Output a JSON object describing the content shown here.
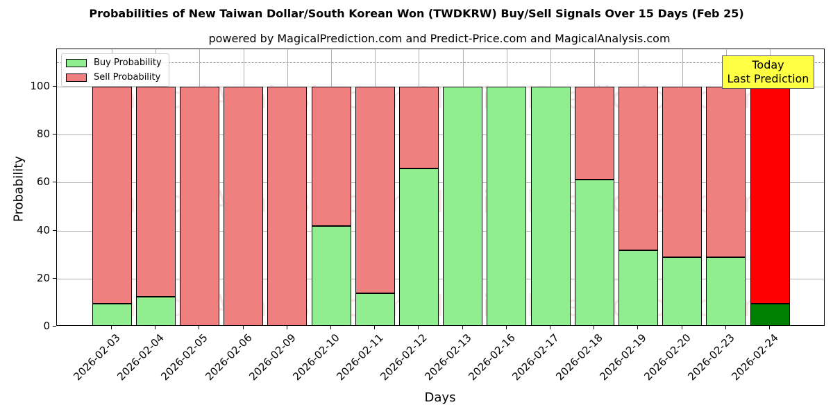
{
  "chart_data": {
    "type": "bar",
    "stacked": true,
    "title": "Probabilities of New Taiwan Dollar/South Korean Won (TWDKRW) Buy/Sell Signals Over 15 Days (Feb 25)",
    "subtitle": "powered by MagicalPrediction.com and Predict-Price.com and MagicalAnalysis.com",
    "xlabel": "Days",
    "ylabel": "Probability",
    "ylim": [
      0,
      115
    ],
    "yticks": [
      0,
      20,
      40,
      60,
      80,
      100
    ],
    "grid": true,
    "reference_line": 110,
    "legend_position": "upper left",
    "categories": [
      "2026-02-03",
      "2026-02-04",
      "2026-02-05",
      "2026-02-06",
      "2026-02-09",
      "2026-02-10",
      "2026-02-11",
      "2026-02-12",
      "2026-02-13",
      "2026-02-16",
      "2026-02-17",
      "2026-02-18",
      "2026-02-19",
      "2026-02-20",
      "2026-02-23",
      "2026-02-24"
    ],
    "series": [
      {
        "name": "Buy Probability",
        "color": "#90ee90",
        "values": [
          9.5,
          12.4,
          0,
          0,
          0,
          41.9,
          13.9,
          65.9,
          100,
          100,
          100,
          61.3,
          31.8,
          28.9,
          28.9,
          9.5
        ]
      },
      {
        "name": "Sell Probability",
        "color": "#f08080",
        "values": [
          90.5,
          87.6,
          100,
          100,
          100,
          58.1,
          86.1,
          34.1,
          0,
          0,
          0,
          38.7,
          68.2,
          71.1,
          71.1,
          90.5
        ]
      }
    ],
    "highlight": {
      "index": 15,
      "buy_color": "#008000",
      "sell_color": "#ff0000"
    },
    "annotation": {
      "line1": "Today",
      "line2": "Last Prediction",
      "background": "#ffff44"
    },
    "watermarks": [
      "MagicalAnalysis.com",
      "MagicalPrediction.com"
    ]
  }
}
